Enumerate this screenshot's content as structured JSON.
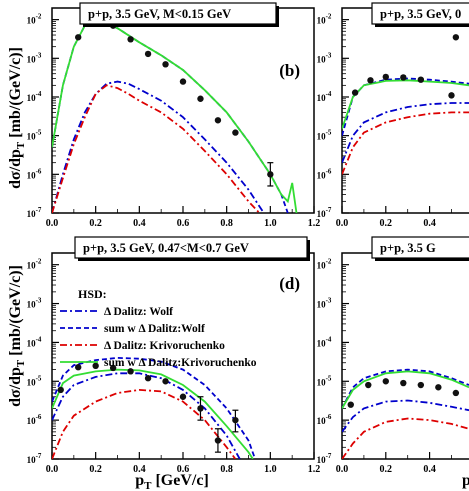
{
  "figure": {
    "y_label_main": "dσ/dp",
    "y_label_sub": "T",
    "y_label_unit": " [mb/(GeV/c)]",
    "x_label_main": "p",
    "x_label_sub": "T",
    "x_label_unit": " [GeV/c]",
    "x_tick_labels": [
      "0.0",
      "0.2",
      "0.4",
      "0.6",
      "0.8",
      "1.0",
      "1.2"
    ],
    "legend_header": "HSD:",
    "legend_entries": [
      {
        "label": "Δ Dalitz: Wolf",
        "color": "#0000cc",
        "dash": "dashdot"
      },
      {
        "label": "sum w Δ Dalitz:Wolf",
        "color": "#0000cc",
        "dash": "dash"
      },
      {
        "label": "Δ Dalitz: Krivoruchenko",
        "color": "#dd0000",
        "dash": "dashdot"
      },
      {
        "label": "sum w Δ Dalitz:Krivoruchenko",
        "color": "#33dd33",
        "dash": "solid"
      }
    ]
  },
  "chart_data": [
    {
      "type": "line",
      "panel": "b",
      "title": "p+p, 3.5 GeV,   M<0.15 GeV",
      "xlim": [
        0.0,
        1.2
      ],
      "ylim": [
        1e-07,
        0.02
      ],
      "y_scale": "log",
      "y_tick_labels": [
        "10⁻⁷",
        "10⁻⁶",
        "10⁻⁵",
        "10⁻⁴",
        "10⁻³",
        "10⁻²"
      ],
      "series": [
        {
          "name": "Δ Dalitz: Wolf",
          "color": "#0000cc",
          "dash": "dashdot",
          "x": [
            0.0,
            0.05,
            0.1,
            0.15,
            0.2,
            0.25,
            0.3,
            0.35,
            0.4,
            0.5,
            0.6,
            0.7,
            0.8,
            0.9,
            0.97
          ],
          "y": [
            1e-07,
            1e-06,
            8e-06,
            4e-05,
            0.00012,
            0.00022,
            0.00025,
            0.00022,
            0.00016,
            8e-05,
            3e-05,
            8e-06,
            2e-06,
            4e-07,
            1e-07
          ]
        },
        {
          "name": "sum w Δ Dalitz:Wolf",
          "color": "#0000cc",
          "dash": "dash",
          "x": [
            0.0,
            0.05,
            0.1,
            0.15,
            0.2,
            0.3,
            0.4,
            0.5,
            0.6,
            0.7,
            0.8,
            0.9,
            1.0,
            1.05,
            1.08
          ],
          "y": [
            5e-06,
            0.0002,
            0.002,
            0.007,
            0.0105,
            0.006,
            0.0026,
            0.0012,
            0.0005,
            0.00015,
            4e-05,
            7e-06,
            1e-06,
            3e-07,
            1e-07
          ]
        },
        {
          "name": "Δ Dalitz: Krivoruchenko",
          "color": "#dd0000",
          "dash": "dashdot",
          "x": [
            0.0,
            0.05,
            0.1,
            0.15,
            0.2,
            0.25,
            0.3,
            0.35,
            0.4,
            0.5,
            0.6,
            0.7,
            0.8,
            0.9,
            0.95
          ],
          "y": [
            1e-07,
            8e-07,
            6e-06,
            3e-05,
            0.00012,
            0.0002,
            0.00017,
            0.00012,
            8e-05,
            4e-05,
            1.5e-05,
            4e-06,
            1e-06,
            2e-07,
            1e-07
          ]
        },
        {
          "name": "sum w Δ Dalitz:Krivoruchenko",
          "color": "#33dd33",
          "dash": "solid",
          "x": [
            0.0,
            0.05,
            0.1,
            0.15,
            0.2,
            0.3,
            0.4,
            0.5,
            0.6,
            0.7,
            0.8,
            0.9,
            1.0,
            1.05,
            1.08,
            1.1,
            1.12
          ],
          "y": [
            5e-06,
            0.0002,
            0.002,
            0.007,
            0.0105,
            0.006,
            0.0026,
            0.0012,
            0.0005,
            0.00015,
            4e-05,
            7e-06,
            1e-06,
            3e-07,
            2e-07,
            6e-07,
            1e-07
          ]
        }
      ],
      "points": {
        "x": [
          0.12,
          0.2,
          0.28,
          0.36,
          0.44,
          0.52,
          0.6,
          0.68,
          0.76,
          0.84,
          1.0
        ],
        "y": [
          0.0035,
          0.011,
          0.007,
          0.0031,
          0.0013,
          0.0007,
          0.00025,
          9e-05,
          2.5e-05,
          1.2e-05,
          1e-06
        ],
        "yerr_low": [
          null,
          null,
          null,
          null,
          null,
          null,
          null,
          null,
          null,
          null,
          5e-07
        ],
        "yerr_high": [
          null,
          null,
          null,
          null,
          null,
          null,
          null,
          null,
          null,
          null,
          2e-06
        ]
      },
      "panel_label": "(b)"
    },
    {
      "type": "line",
      "panel": "c",
      "title": "p+p, 3.5 GeV, 0",
      "xlim": [
        0.0,
        0.58
      ],
      "ylim": [
        1e-07,
        0.02
      ],
      "y_scale": "log",
      "x_tick_labels_shown": [
        "0.0",
        "0.2",
        "0.4"
      ],
      "y_tick_labels": [
        "10⁻⁷",
        "10⁻⁶",
        "10⁻⁵",
        "10⁻⁴",
        "10⁻³",
        "10⁻²"
      ],
      "series": [
        {
          "name": "Δ Dalitz: Wolf",
          "color": "#0000cc",
          "dash": "dashdot",
          "x": [
            0.0,
            0.05,
            0.1,
            0.2,
            0.3,
            0.4,
            0.5,
            0.58
          ],
          "y": [
            2e-06,
            1e-05,
            2.2e-05,
            4e-05,
            5.5e-05,
            6.5e-05,
            7e-05,
            7e-05
          ]
        },
        {
          "name": "sum w Δ Dalitz:Wolf",
          "color": "#0000cc",
          "dash": "dash",
          "x": [
            0.0,
            0.05,
            0.1,
            0.2,
            0.3,
            0.4,
            0.5,
            0.58
          ],
          "y": [
            1e-05,
            0.0001,
            0.0002,
            0.00028,
            0.0003,
            0.00028,
            0.00025,
            0.00022
          ]
        },
        {
          "name": "Δ Dalitz: Krivoruchenko",
          "color": "#dd0000",
          "dash": "dashdot",
          "x": [
            0.0,
            0.05,
            0.1,
            0.2,
            0.3,
            0.4,
            0.5,
            0.58
          ],
          "y": [
            1e-06,
            5e-06,
            1.2e-05,
            2.2e-05,
            3e-05,
            3.7e-05,
            4e-05,
            4e-05
          ]
        },
        {
          "name": "sum w Δ Dalitz:Krivoruchenko",
          "color": "#33dd33",
          "dash": "solid",
          "x": [
            0.0,
            0.05,
            0.1,
            0.2,
            0.3,
            0.4,
            0.5,
            0.58
          ],
          "y": [
            1.5e-05,
            0.0001,
            0.0002,
            0.00026,
            0.00027,
            0.00025,
            0.00023,
            0.0002
          ]
        }
      ],
      "points": {
        "x": [
          0.06,
          0.13,
          0.2,
          0.28,
          0.36,
          0.5,
          0.52
        ],
        "y": [
          0.00013,
          0.00027,
          0.00033,
          0.00032,
          0.00028,
          0.00011,
          0.0035
        ]
      }
    },
    {
      "type": "line",
      "panel": "d",
      "title": "p+p, 3.5 GeV, 0.47<M<0.7 GeV",
      "xlim": [
        0.0,
        1.2
      ],
      "ylim": [
        1e-07,
        0.02
      ],
      "y_scale": "log",
      "y_tick_labels": [
        "10⁻⁷",
        "10⁻⁶",
        "10⁻⁵",
        "10⁻⁴",
        "10⁻³",
        "10⁻²"
      ],
      "series": [
        {
          "name": "Δ Dalitz: Wolf",
          "color": "#0000cc",
          "dash": "dashdot",
          "x": [
            0.0,
            0.05,
            0.1,
            0.2,
            0.3,
            0.4,
            0.5,
            0.6,
            0.7,
            0.8,
            0.86
          ],
          "y": [
            1e-06,
            4e-06,
            8e-06,
            1.3e-05,
            1.6e-05,
            1.6e-05,
            1.2e-05,
            6e-06,
            2e-06,
            4e-07,
            1e-07
          ]
        },
        {
          "name": "sum w Δ Dalitz:Wolf",
          "color": "#0000cc",
          "dash": "dash",
          "x": [
            0.0,
            0.05,
            0.1,
            0.2,
            0.3,
            0.4,
            0.5,
            0.6,
            0.7,
            0.8,
            0.9,
            0.93
          ],
          "y": [
            3e-06,
            1.4e-05,
            2.6e-05,
            3.5e-05,
            4e-05,
            3.8e-05,
            3.2e-05,
            2e-05,
            8e-06,
            2e-06,
            3e-07,
            1e-07
          ]
        },
        {
          "name": "Δ Dalitz: Krivoruchenko",
          "color": "#dd0000",
          "dash": "dashdot",
          "x": [
            0.0,
            0.05,
            0.1,
            0.2,
            0.3,
            0.4,
            0.5,
            0.6,
            0.7,
            0.8,
            0.84
          ],
          "y": [
            1e-07,
            5e-07,
            1.3e-06,
            3e-06,
            5e-06,
            6e-06,
            5.5e-06,
            3e-06,
            1e-06,
            2e-07,
            1e-07
          ]
        },
        {
          "name": "sum w Δ Dalitz:Krivoruchenko",
          "color": "#33dd33",
          "dash": "solid",
          "x": [
            0.0,
            0.05,
            0.1,
            0.2,
            0.3,
            0.4,
            0.5,
            0.6,
            0.7,
            0.8,
            0.9,
            0.92
          ],
          "y": [
            2e-06,
            9e-06,
            1.4e-05,
            1.8e-05,
            2e-05,
            1.9e-05,
            1.5e-05,
            8e-06,
            3e-06,
            7e-07,
            1.5e-07,
            1e-07
          ]
        }
      ],
      "points": {
        "x": [
          0.04,
          0.12,
          0.2,
          0.28,
          0.36,
          0.44,
          0.52,
          0.6,
          0.68,
          0.76,
          0.84
        ],
        "y": [
          6e-06,
          2.3e-05,
          2.5e-05,
          2.2e-05,
          1.8e-05,
          1.2e-05,
          1e-05,
          4e-06,
          2e-06,
          3e-07,
          1e-06
        ],
        "yerr_low": [
          null,
          null,
          null,
          null,
          null,
          null,
          null,
          null,
          1e-06,
          1.5e-07,
          5e-07
        ],
        "yerr_high": [
          null,
          null,
          null,
          null,
          null,
          null,
          null,
          null,
          4e-06,
          6e-07,
          1.8e-06
        ]
      },
      "panel_label": "(d)"
    },
    {
      "type": "line",
      "panel": "e",
      "title": "p+p, 3.5 G",
      "xlim": [
        0.0,
        0.58
      ],
      "ylim": [
        1e-07,
        0.02
      ],
      "y_scale": "log",
      "x_tick_labels_shown": [
        "0.0",
        "0.2",
        "0.4"
      ],
      "y_tick_labels": [
        "10⁻⁷",
        "10⁻⁶",
        "10⁻⁵",
        "10⁻⁴",
        "10⁻³",
        "10⁻²"
      ],
      "series": [
        {
          "name": "Δ Dalitz: Wolf",
          "color": "#0000cc",
          "dash": "dashdot",
          "x": [
            0.0,
            0.05,
            0.1,
            0.2,
            0.3,
            0.4,
            0.5,
            0.58
          ],
          "y": [
            5e-07,
            1.2e-06,
            2e-06,
            3e-06,
            3.2e-06,
            2.8e-06,
            2.2e-06,
            1.8e-06
          ]
        },
        {
          "name": "sum w Δ Dalitz:Wolf",
          "color": "#0000cc",
          "dash": "dash",
          "x": [
            0.0,
            0.05,
            0.1,
            0.2,
            0.3,
            0.4,
            0.5,
            0.58
          ],
          "y": [
            2e-06,
            7e-06,
            1.2e-05,
            1.8e-05,
            2e-05,
            1.8e-05,
            1.2e-05,
            8e-06
          ]
        },
        {
          "name": "Δ Dalitz: Krivoruchenko",
          "color": "#dd0000",
          "dash": "dashdot",
          "x": [
            0.0,
            0.05,
            0.1,
            0.2,
            0.3,
            0.4,
            0.5,
            0.58
          ],
          "y": [
            1e-07,
            2.5e-07,
            5e-07,
            9e-07,
            1.1e-06,
            1e-06,
            8e-07,
            6e-07
          ]
        },
        {
          "name": "sum w Δ Dalitz:Krivoruchenko",
          "color": "#33dd33",
          "dash": "solid",
          "x": [
            0.0,
            0.05,
            0.1,
            0.2,
            0.3,
            0.4,
            0.5,
            0.58
          ],
          "y": [
            2e-06,
            6e-06,
            1e-05,
            1.6e-05,
            1.8e-05,
            1.6e-05,
            1.1e-05,
            7e-06
          ]
        }
      ],
      "points": {
        "x": [
          0.04,
          0.12,
          0.2,
          0.28,
          0.36,
          0.44,
          0.52
        ],
        "y": [
          2.5e-06,
          8e-06,
          1e-05,
          9e-06,
          8e-06,
          7e-06,
          5e-06
        ]
      }
    }
  ]
}
